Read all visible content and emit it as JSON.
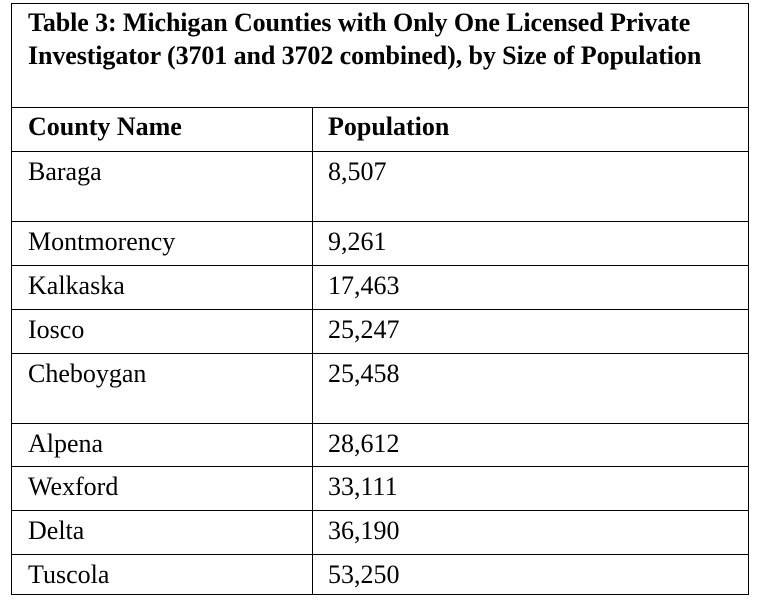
{
  "table": {
    "title": "Table 3: Michigan Counties with Only One Licensed Private Investigator (3701 and 3702 combined), by Size of Population",
    "columns": [
      "County Name",
      "Population"
    ],
    "rows": [
      {
        "county": "Baraga",
        "population": "8,507"
      },
      {
        "county": "Montmorency",
        "population": "9,261"
      },
      {
        "county": "Kalkaska",
        "population": "17,463"
      },
      {
        "county": "Iosco",
        "population": "25,247"
      },
      {
        "county": "Cheboygan",
        "population": "25,458"
      },
      {
        "county": "Alpena",
        "population": "28,612"
      },
      {
        "county": "Wexford",
        "population": "33,111"
      },
      {
        "county": "Delta",
        "population": "36,190"
      },
      {
        "county": "Tuscola",
        "population": "53,250"
      }
    ]
  }
}
